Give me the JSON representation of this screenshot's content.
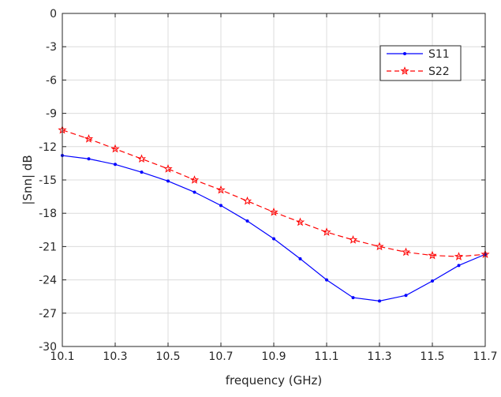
{
  "chart_data": {
    "type": "line",
    "title": "",
    "xlabel": "frequency (GHz)",
    "ylabel": "|Snn| dB",
    "xlim": [
      10.1,
      11.7
    ],
    "ylim": [
      -30,
      0
    ],
    "xticks": [
      "10.1",
      "10.3",
      "10.5",
      "10.7",
      "10.9",
      "11.1",
      "11.3",
      "11.5",
      "11.7"
    ],
    "yticks": [
      "0",
      "-3",
      "-6",
      "-9",
      "-12",
      "-15",
      "-18",
      "-21",
      "-24",
      "-27",
      "-30"
    ],
    "grid": true,
    "legend_position": "top-right",
    "x": [
      10.1,
      10.2,
      10.3,
      10.4,
      10.5,
      10.6,
      10.7,
      10.8,
      10.9,
      11.0,
      11.1,
      11.2,
      11.3,
      11.4,
      11.5,
      11.6,
      11.7
    ],
    "series": [
      {
        "name": "S11",
        "color": "#0000ff",
        "line_style": "solid",
        "marker": "dot",
        "values": [
          -12.8,
          -13.1,
          -13.6,
          -14.3,
          -15.1,
          -16.1,
          -17.3,
          -18.7,
          -20.3,
          -22.1,
          -24.0,
          -25.6,
          -25.9,
          -25.4,
          -24.1,
          -22.7,
          -21.7
        ]
      },
      {
        "name": "S22",
        "color": "#ff0000",
        "line_style": "dashed",
        "marker": "star",
        "values": [
          -10.5,
          -11.3,
          -12.2,
          -13.1,
          -14.0,
          -15.0,
          -15.9,
          -16.9,
          -17.9,
          -18.8,
          -19.7,
          -20.4,
          -21.0,
          -21.5,
          -21.8,
          -21.9,
          -21.7
        ]
      }
    ]
  }
}
